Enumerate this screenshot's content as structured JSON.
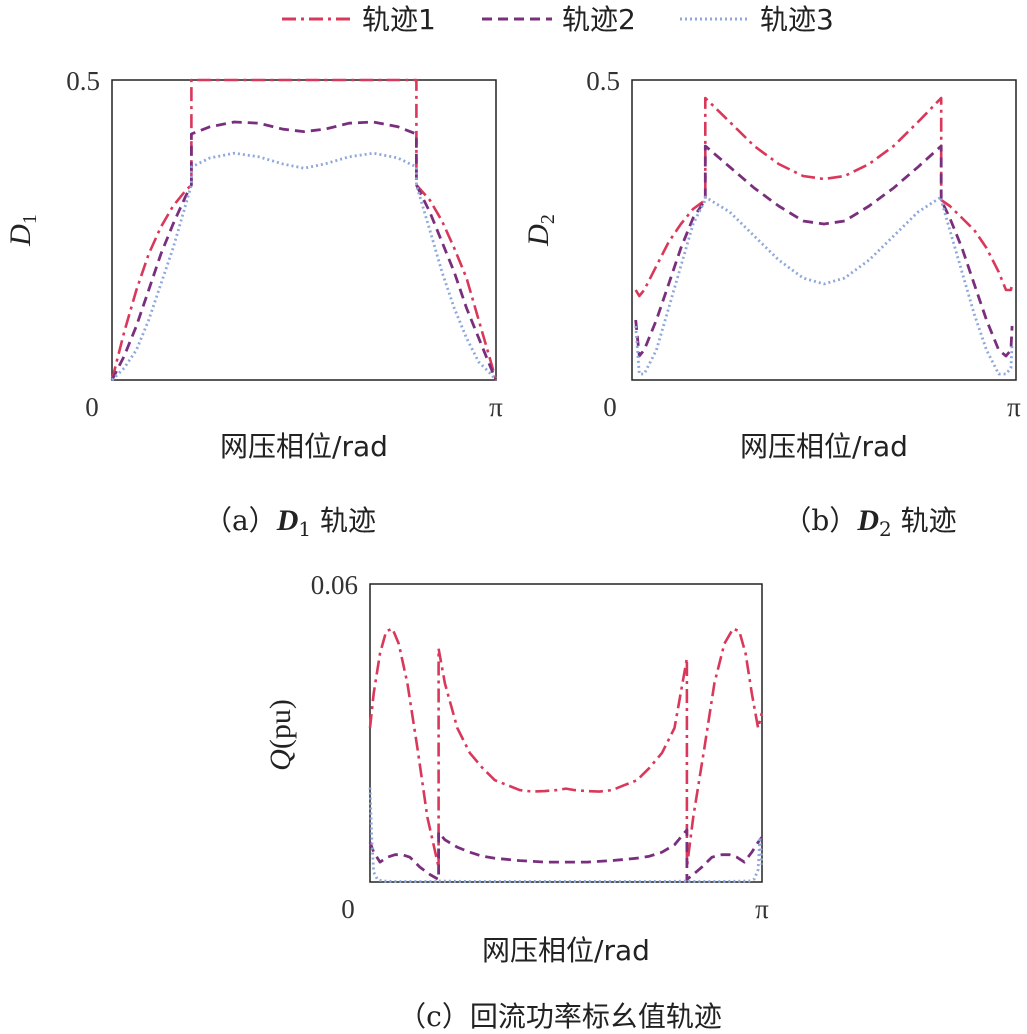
{
  "colors": {
    "s1": "#d9385a",
    "s2": "#7a2f7e",
    "s3": "#8fa8dc",
    "frame": "#222222"
  },
  "legend": {
    "items": [
      {
        "label": "轨迹1",
        "style": "dash-dot",
        "color": "#d9385a"
      },
      {
        "label": "轨迹2",
        "style": "dashed",
        "color": "#7a2f7e"
      },
      {
        "label": "轨迹3",
        "style": "dotted",
        "color": "#8fa8dc"
      }
    ]
  },
  "chart_data": [
    {
      "id": "a",
      "type": "line",
      "caption_prefix": "（a）",
      "caption_var": "D",
      "caption_sub": "1",
      "caption_suffix": " 轨迹",
      "ylabel_var": "D",
      "ylabel_sub": "1",
      "xlabel": "网压相位/rad",
      "xtick_labels": [
        "0",
        "π"
      ],
      "ytick_labels": [
        "0.5"
      ],
      "xlim": [
        0,
        3.1416
      ],
      "ylim": [
        0,
        0.5
      ],
      "series": [
        {
          "name": "轨迹1",
          "x": [
            0,
            0.1,
            0.2,
            0.3,
            0.4,
            0.5,
            0.6,
            0.65,
            0.65,
            1.0,
            1.57,
            2.0,
            2.49,
            2.49,
            2.6,
            2.7,
            2.8,
            2.9,
            3.0,
            3.1,
            3.14
          ],
          "y": [
            0,
            0.08,
            0.15,
            0.21,
            0.255,
            0.29,
            0.315,
            0.325,
            0.5,
            0.5,
            0.5,
            0.5,
            0.5,
            0.325,
            0.3,
            0.265,
            0.22,
            0.17,
            0.1,
            0.03,
            0
          ]
        },
        {
          "name": "轨迹2",
          "x": [
            0,
            0.1,
            0.2,
            0.3,
            0.4,
            0.5,
            0.6,
            0.65,
            0.65,
            0.8,
            1.0,
            1.2,
            1.4,
            1.57,
            1.74,
            1.94,
            2.14,
            2.34,
            2.49,
            2.49,
            2.6,
            2.7,
            2.8,
            2.9,
            3.0,
            3.1,
            3.14
          ],
          "y": [
            0,
            0.04,
            0.09,
            0.15,
            0.21,
            0.26,
            0.305,
            0.325,
            0.41,
            0.422,
            0.43,
            0.428,
            0.418,
            0.414,
            0.418,
            0.428,
            0.43,
            0.422,
            0.41,
            0.325,
            0.28,
            0.23,
            0.18,
            0.12,
            0.07,
            0.02,
            0
          ]
        },
        {
          "name": "轨迹3",
          "x": [
            0,
            0.1,
            0.2,
            0.3,
            0.4,
            0.5,
            0.6,
            0.65,
            0.65,
            0.8,
            1.0,
            1.2,
            1.4,
            1.57,
            1.74,
            1.94,
            2.14,
            2.34,
            2.49,
            2.49,
            2.6,
            2.7,
            2.8,
            2.9,
            3.0,
            3.1,
            3.14
          ],
          "y": [
            0,
            0.02,
            0.05,
            0.1,
            0.16,
            0.22,
            0.29,
            0.325,
            0.355,
            0.37,
            0.378,
            0.372,
            0.36,
            0.353,
            0.36,
            0.372,
            0.378,
            0.37,
            0.355,
            0.325,
            0.25,
            0.18,
            0.12,
            0.07,
            0.03,
            0.01,
            0
          ]
        }
      ]
    },
    {
      "id": "b",
      "type": "line",
      "caption_prefix": "（b）",
      "caption_var": "D",
      "caption_sub": "2",
      "caption_suffix": " 轨迹",
      "ylabel_var": "D",
      "ylabel_sub": "2",
      "xlabel": "网压相位/rad",
      "xtick_labels": [
        "0",
        "π"
      ],
      "ytick_labels": [
        "0.5"
      ],
      "xlim": [
        0,
        3.1416
      ],
      "ylim": [
        0,
        0.5
      ],
      "series": [
        {
          "name": "轨迹1",
          "x": [
            0.03,
            0.06,
            0.1,
            0.2,
            0.3,
            0.4,
            0.5,
            0.6,
            0.6,
            0.8,
            1.0,
            1.2,
            1.4,
            1.57,
            1.74,
            1.94,
            2.14,
            2.34,
            2.53,
            2.53,
            2.6,
            2.7,
            2.8,
            2.9,
            3.0,
            3.06,
            3.1,
            3.11
          ],
          "y": [
            0.15,
            0.14,
            0.15,
            0.19,
            0.23,
            0.26,
            0.285,
            0.3,
            0.47,
            0.43,
            0.39,
            0.36,
            0.34,
            0.335,
            0.34,
            0.36,
            0.39,
            0.43,
            0.47,
            0.3,
            0.29,
            0.27,
            0.25,
            0.22,
            0.18,
            0.15,
            0.15,
            0.16
          ]
        },
        {
          "name": "轨迹2",
          "x": [
            0.03,
            0.06,
            0.1,
            0.2,
            0.3,
            0.4,
            0.5,
            0.6,
            0.6,
            0.8,
            1.0,
            1.2,
            1.4,
            1.57,
            1.74,
            1.94,
            2.14,
            2.34,
            2.53,
            2.53,
            2.6,
            2.7,
            2.8,
            2.9,
            3.0,
            3.06,
            3.1,
            3.11
          ],
          "y": [
            0.1,
            0.04,
            0.05,
            0.1,
            0.16,
            0.22,
            0.27,
            0.3,
            0.39,
            0.355,
            0.32,
            0.29,
            0.265,
            0.26,
            0.265,
            0.29,
            0.32,
            0.355,
            0.39,
            0.3,
            0.27,
            0.22,
            0.16,
            0.1,
            0.05,
            0.04,
            0.05,
            0.09
          ]
        },
        {
          "name": "轨迹3",
          "x": [
            0.03,
            0.06,
            0.1,
            0.2,
            0.3,
            0.4,
            0.5,
            0.6,
            0.6,
            0.8,
            1.0,
            1.2,
            1.4,
            1.57,
            1.74,
            1.94,
            2.14,
            2.34,
            2.53,
            2.53,
            2.6,
            2.7,
            2.8,
            2.9,
            3.0,
            3.06,
            3.1,
            3.11
          ],
          "y": [
            0.09,
            0.01,
            0.01,
            0.05,
            0.12,
            0.19,
            0.26,
            0.3,
            0.305,
            0.28,
            0.24,
            0.2,
            0.17,
            0.16,
            0.17,
            0.2,
            0.24,
            0.28,
            0.305,
            0.3,
            0.25,
            0.18,
            0.11,
            0.05,
            0.01,
            0.01,
            0.02,
            0.06
          ]
        }
      ]
    },
    {
      "id": "c",
      "type": "line",
      "caption_prefix": "（c）",
      "caption_var": "",
      "caption_sub": "",
      "caption_suffix": "回流功率标幺值轨迹",
      "ylabel_var": "Q",
      "ylabel_sub": "",
      "ylabel_unit": "(pu)",
      "xlabel": "网压相位/rad",
      "xtick_labels": [
        "0",
        "π"
      ],
      "ytick_labels": [
        "0.06"
      ],
      "xlim": [
        0,
        3.1416
      ],
      "ylim": [
        0,
        0.06
      ],
      "series": [
        {
          "name": "轨迹1",
          "x": [
            0,
            0.03,
            0.08,
            0.13,
            0.18,
            0.23,
            0.3,
            0.38,
            0.46,
            0.55,
            0.55,
            0.6,
            0.7,
            0.8,
            0.9,
            1.0,
            1.1,
            1.2,
            1.3,
            1.4,
            1.5,
            1.57,
            1.64,
            1.74,
            1.84,
            1.94,
            2.04,
            2.14,
            2.24,
            2.34,
            2.44,
            2.54,
            2.54,
            2.59,
            2.68,
            2.76,
            2.84,
            2.91,
            2.96,
            3.01,
            3.06,
            3.11,
            3.14
          ],
          "y": [
            0.031,
            0.038,
            0.046,
            0.0505,
            0.051,
            0.048,
            0.04,
            0.027,
            0.013,
            0.003,
            0.047,
            0.04,
            0.031,
            0.026,
            0.023,
            0.0205,
            0.0195,
            0.0185,
            0.0182,
            0.0183,
            0.0185,
            0.0188,
            0.0185,
            0.0183,
            0.0182,
            0.0185,
            0.0195,
            0.0205,
            0.023,
            0.026,
            0.031,
            0.045,
            0.003,
            0.013,
            0.027,
            0.04,
            0.048,
            0.051,
            0.0505,
            0.046,
            0.038,
            0.031,
            0.034
          ]
        },
        {
          "name": "轨迹2",
          "x": [
            0,
            0.03,
            0.08,
            0.14,
            0.2,
            0.26,
            0.32,
            0.4,
            0.48,
            0.55,
            0.55,
            0.6,
            0.7,
            0.8,
            0.9,
            1.0,
            1.2,
            1.4,
            1.57,
            1.74,
            1.94,
            2.14,
            2.24,
            2.34,
            2.44,
            2.54,
            2.54,
            2.59,
            2.66,
            2.74,
            2.82,
            2.88,
            2.94,
            3.0,
            3.06,
            3.11,
            3.14
          ],
          "y": [
            0.008,
            0.006,
            0.004,
            0.005,
            0.0055,
            0.0055,
            0.005,
            0.003,
            0.0015,
            0.0005,
            0.01,
            0.0085,
            0.007,
            0.006,
            0.0052,
            0.0048,
            0.0043,
            0.004,
            0.004,
            0.004,
            0.0043,
            0.0048,
            0.0052,
            0.006,
            0.0075,
            0.0105,
            0.0005,
            0.0015,
            0.003,
            0.005,
            0.0055,
            0.0055,
            0.005,
            0.004,
            0.006,
            0.008,
            0.009
          ]
        },
        {
          "name": "轨迹3",
          "x": [
            0,
            0.015,
            0.03,
            0.06,
            0.1,
            0.2,
            0.4,
            0.55,
            0.55,
            0.8,
            1.2,
            1.57,
            2.0,
            2.4,
            2.54,
            2.54,
            2.8,
            3.04,
            3.08,
            3.11,
            3.125,
            3.14
          ],
          "y": [
            0.019,
            0.008,
            0.002,
            0.0005,
            0.0002,
            0.0001,
            0.0001,
            0.0001,
            0.0002,
            0.0001,
            0.0001,
            0.0001,
            0.0001,
            0.0001,
            0.0002,
            0.0001,
            0.0001,
            0.0002,
            0.0006,
            0.0025,
            0.009,
            0.0035
          ]
        }
      ]
    }
  ]
}
